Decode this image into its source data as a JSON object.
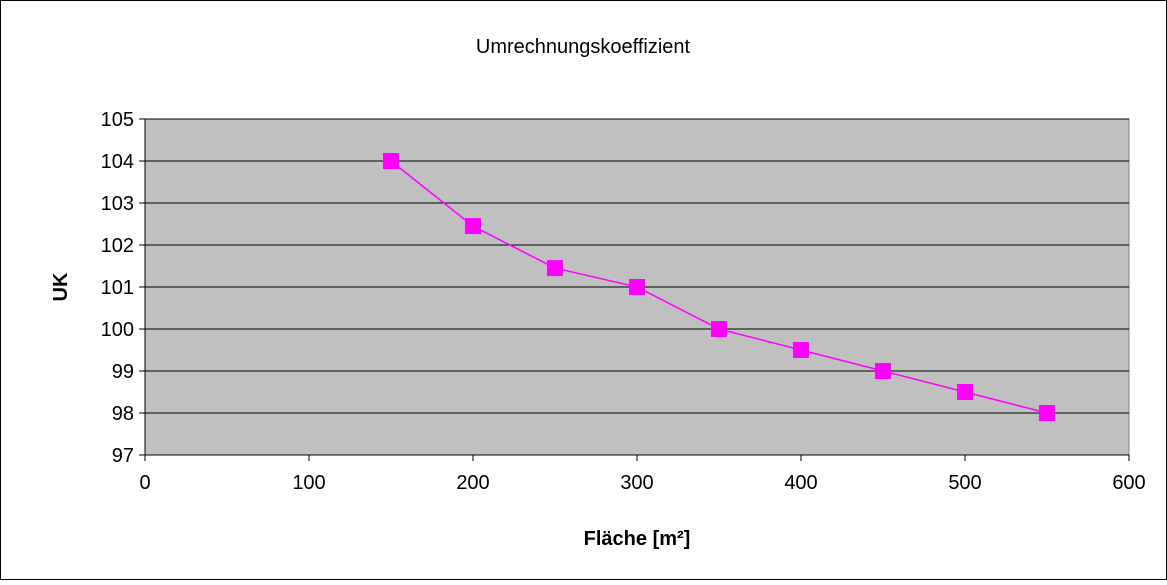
{
  "chart_data": {
    "type": "line",
    "title": "Umrechnungskoeffizient",
    "xlabel": "Fläche [m²]",
    "ylabel": "UK",
    "xlim": [
      0,
      600
    ],
    "ylim": [
      97,
      105
    ],
    "x_ticks": [
      0,
      100,
      200,
      300,
      400,
      500,
      600
    ],
    "y_ticks": [
      97,
      98,
      99,
      100,
      101,
      102,
      103,
      104,
      105
    ],
    "grid": "horizontal",
    "legend": "none",
    "colors": {
      "plot_background": "#c0c0c0",
      "series": "#ff00ff",
      "gridline": "#000000",
      "page_background": "#ffffff"
    },
    "marker": "square",
    "series": [
      {
        "x": [
          150,
          200,
          250,
          300,
          350,
          400,
          450,
          500,
          550
        ],
        "y": [
          104,
          102.45,
          101.45,
          101,
          100,
          99.5,
          99,
          98.5,
          98
        ]
      }
    ]
  }
}
